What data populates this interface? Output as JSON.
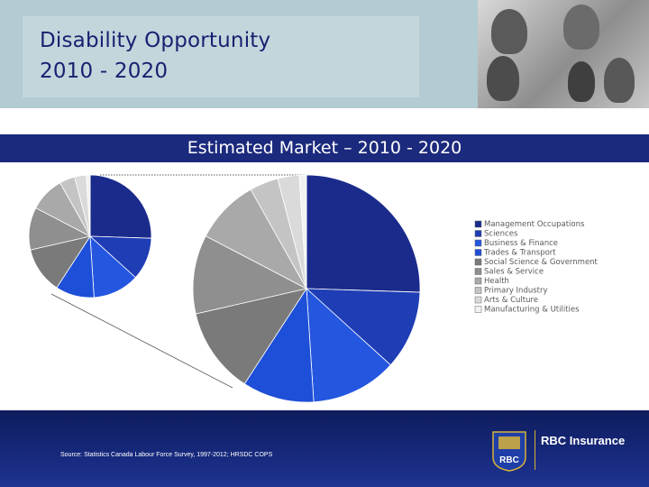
{
  "slide": {
    "title_line1": "Disability Opportunity",
    "title_line2": "2010 - 2020",
    "chart_title": "Estimated Market – 2010 - 2020",
    "source": "Source: Statistics Canada Labour Force Survey, 1997-2012; HRSDC COPS",
    "brand": "RBC Insurance",
    "logo_text": "RBC"
  },
  "colors": {
    "header_bg": "#b3cbd2",
    "band_bg": "#1c2a7d",
    "title_text": "#1a1f70",
    "footer_bg": "#16287a",
    "accent_gold": "#d8b23a"
  },
  "chart_data": {
    "type": "pie",
    "categories": [
      "Management Occupations",
      "Sciences",
      "Business & Finance",
      "Trades & Transport",
      "Social Science & Government",
      "Sales & Service",
      "Health",
      "Primary Industry",
      "Arts & Culture",
      "Manufacturing & Utilities"
    ],
    "values": [
      25,
      11,
      12,
      10,
      12,
      11,
      9,
      4,
      3,
      1
    ],
    "colors": [
      "#1a2b8c",
      "#1f3db5",
      "#2456e0",
      "#1e4fd8",
      "#7a7a7a",
      "#8f8f8f",
      "#a9a9a9",
      "#c4c4c4",
      "#dadada",
      "#f2f2f2"
    ],
    "legend_position": "right"
  }
}
